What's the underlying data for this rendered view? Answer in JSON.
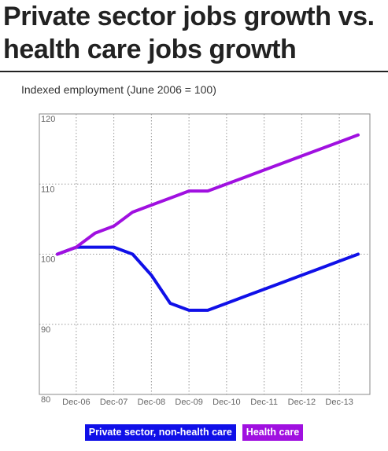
{
  "header": {
    "title": "Private sector jobs growth vs. health care jobs growth"
  },
  "chart_data": {
    "type": "line",
    "title": "Private sector jobs growth vs. health care jobs growth",
    "subtitle": "Indexed employment (June 2006 = 100)",
    "xlabel": "",
    "ylabel": "",
    "ylim": [
      80,
      120
    ],
    "yticks": [
      80,
      90,
      100,
      110,
      120
    ],
    "x_tick_labels": [
      "Dec-06",
      "Dec-07",
      "Dec-08",
      "Dec-09",
      "Dec-10",
      "Dec-11",
      "Dec-12",
      "Dec-13"
    ],
    "x": [
      "Jun-06",
      "Dec-06",
      "Jun-07",
      "Dec-07",
      "Jun-08",
      "Dec-08",
      "Jun-09",
      "Dec-09",
      "Jun-10",
      "Dec-10",
      "Jun-11",
      "Dec-11",
      "Jun-12",
      "Dec-12",
      "Jun-13",
      "Dec-13",
      "Jun-14"
    ],
    "grid": true,
    "legend_placement": "bottom",
    "series": [
      {
        "name": "Private sector, non-health care",
        "color": "#1010e8",
        "values": [
          100,
          101,
          101,
          101,
          100,
          97,
          93,
          92,
          92,
          93,
          94,
          95,
          96,
          97,
          98,
          99,
          100
        ]
      },
      {
        "name": "Health care",
        "color": "#a010e0",
        "values": [
          100,
          101,
          103,
          104,
          106,
          107,
          108,
          109,
          109,
          110,
          111,
          112,
          113,
          114,
          115,
          116,
          117
        ]
      }
    ]
  }
}
